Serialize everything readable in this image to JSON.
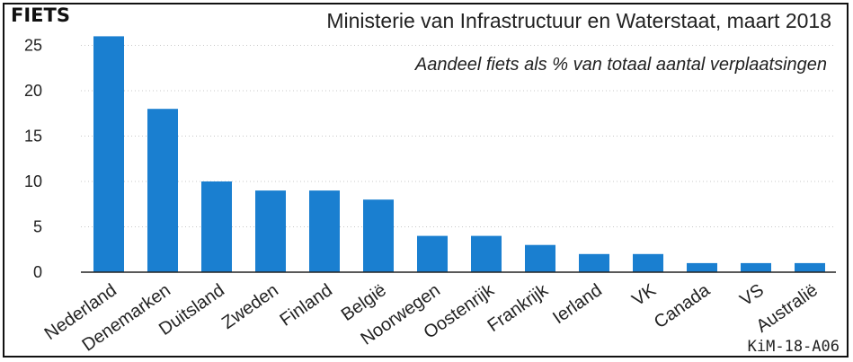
{
  "badge": "FIETS",
  "source": "Ministerie van Infrastructuur en  Waterstaat, maart 2018",
  "code": "KiM-18-A06",
  "colors": {
    "bar": "#1a7fd0",
    "axis": "#222222",
    "grid": "#c8c8c8"
  },
  "chart_data": {
    "type": "bar",
    "title": "Aandeel fiets als % van totaal aantal verplaatsingen",
    "xlabel": "",
    "ylabel": "",
    "ylim": [
      0,
      27
    ],
    "yticks": [
      0,
      5,
      10,
      15,
      20,
      25
    ],
    "grid": true,
    "categories": [
      "Nederland",
      "Denemarken",
      "Duitsland",
      "Zweden",
      "Finland",
      "België",
      "Noorwegen",
      "Oostenrijk",
      "Frankrijk",
      "Ierland",
      "VK",
      "Canada",
      "VS",
      "Australië"
    ],
    "values": [
      26,
      18,
      10,
      9,
      9,
      8,
      4,
      4,
      3,
      2,
      2,
      1,
      1,
      1
    ]
  }
}
